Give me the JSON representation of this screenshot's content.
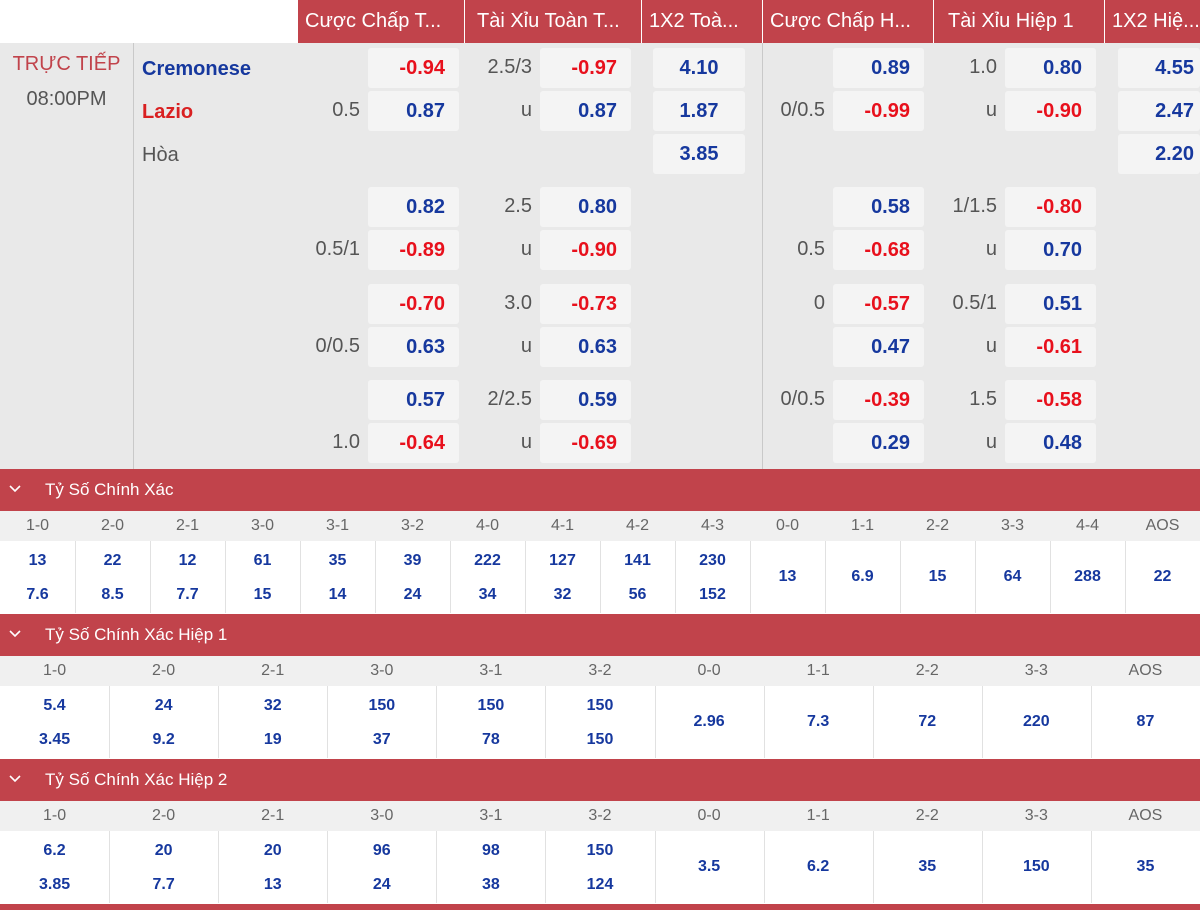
{
  "header": {
    "columns": [
      "Cược Chấp T...",
      "Tài Xỉu Toàn T...",
      "1X2 Toà...",
      "Cược Chấp H...",
      "Tài Xỉu Hiệp 1",
      "1X2 Hiệ..."
    ]
  },
  "match": {
    "status": "TRỰC TIẾP",
    "time": "08:00PM",
    "home": "Cremonese",
    "away": "Lazio",
    "draw": "Hòa"
  },
  "full_1x2": [
    "4.10",
    "1.87",
    "3.85"
  ],
  "half_1x2": [
    "4.55",
    "2.47",
    "2.20"
  ],
  "lines": [
    {
      "ft_hdp": {
        "line": "0.5",
        "home": "-0.94",
        "away": "0.87"
      },
      "ft_ou": {
        "line": "2.5/3",
        "over": "-0.97",
        "under_label": "u",
        "under": "0.87"
      },
      "h1_hdp": {
        "line": "0/0.5",
        "home": "0.89",
        "away": "-0.99"
      },
      "h1_ou": {
        "line": "1.0",
        "over": "0.80",
        "under_label": "u",
        "under": "-0.90"
      }
    },
    {
      "ft_hdp": {
        "line": "0.5/1",
        "home": "0.82",
        "away": "-0.89"
      },
      "ft_ou": {
        "line": "2.5",
        "over": "0.80",
        "under_label": "u",
        "under": "-0.90"
      },
      "h1_hdp": {
        "line": "0.5",
        "home": "0.58",
        "away": "-0.68"
      },
      "h1_ou": {
        "line": "1/1.5",
        "over": "-0.80",
        "under_label": "u",
        "under": "0.70"
      }
    },
    {
      "ft_hdp": {
        "line": "0/0.5",
        "home": "-0.70",
        "away": "0.63"
      },
      "ft_ou": {
        "line": "3.0",
        "over": "-0.73",
        "under_label": "u",
        "under": "0.63"
      },
      "h1_hdp": {
        "line": "0",
        "home": "-0.57",
        "away": "0.47"
      },
      "h1_ou": {
        "line": "0.5/1",
        "over": "0.51",
        "under_label": "u",
        "under": "-0.61"
      }
    },
    {
      "ft_hdp": {
        "line": "1.0",
        "home": "0.57",
        "away": "-0.64"
      },
      "ft_ou": {
        "line": "2/2.5",
        "over": "0.59",
        "under_label": "u",
        "under": "-0.69"
      },
      "h1_hdp": {
        "line": "0/0.5",
        "home": "-0.39",
        "away": "0.29"
      },
      "h1_ou": {
        "line": "1.5",
        "over": "-0.58",
        "under_label": "u",
        "under": "0.48"
      }
    }
  ],
  "correct_score": {
    "title": "Tỷ Số Chính Xác",
    "scores": [
      {
        "label": "1-0",
        "home": "13",
        "away": "7.6"
      },
      {
        "label": "2-0",
        "home": "22",
        "away": "8.5"
      },
      {
        "label": "2-1",
        "home": "12",
        "away": "7.7"
      },
      {
        "label": "3-0",
        "home": "61",
        "away": "15"
      },
      {
        "label": "3-1",
        "home": "35",
        "away": "14"
      },
      {
        "label": "3-2",
        "home": "39",
        "away": "24"
      },
      {
        "label": "4-0",
        "home": "222",
        "away": "34"
      },
      {
        "label": "4-1",
        "home": "127",
        "away": "32"
      },
      {
        "label": "4-2",
        "home": "141",
        "away": "56"
      },
      {
        "label": "4-3",
        "home": "230",
        "away": "152"
      }
    ],
    "draws": [
      {
        "label": "0-0",
        "value": "13"
      },
      {
        "label": "1-1",
        "value": "6.9"
      },
      {
        "label": "2-2",
        "value": "15"
      },
      {
        "label": "3-3",
        "value": "64"
      },
      {
        "label": "4-4",
        "value": "288"
      },
      {
        "label": "AOS",
        "value": "22"
      }
    ]
  },
  "correct_score_h1": {
    "title": "Tỷ Số Chính Xác Hiệp 1",
    "scores": [
      {
        "label": "1-0",
        "home": "5.4",
        "away": "3.45"
      },
      {
        "label": "2-0",
        "home": "24",
        "away": "9.2"
      },
      {
        "label": "2-1",
        "home": "32",
        "away": "19"
      },
      {
        "label": "3-0",
        "home": "150",
        "away": "37"
      },
      {
        "label": "3-1",
        "home": "150",
        "away": "78"
      },
      {
        "label": "3-2",
        "home": "150",
        "away": "150"
      }
    ],
    "draws": [
      {
        "label": "0-0",
        "value": "2.96"
      },
      {
        "label": "1-1",
        "value": "7.3"
      },
      {
        "label": "2-2",
        "value": "72"
      },
      {
        "label": "3-3",
        "value": "220"
      },
      {
        "label": "AOS",
        "value": "87"
      }
    ]
  },
  "correct_score_h2": {
    "title": "Tỷ Số Chính Xác Hiệp 2",
    "scores": [
      {
        "label": "1-0",
        "home": "6.2",
        "away": "3.85"
      },
      {
        "label": "2-0",
        "home": "20",
        "away": "7.7"
      },
      {
        "label": "2-1",
        "home": "20",
        "away": "13"
      },
      {
        "label": "3-0",
        "home": "96",
        "away": "24"
      },
      {
        "label": "3-1",
        "home": "98",
        "away": "38"
      },
      {
        "label": "3-2",
        "home": "150",
        "away": "124"
      }
    ],
    "draws": [
      {
        "label": "0-0",
        "value": "3.5"
      },
      {
        "label": "1-1",
        "value": "6.2"
      },
      {
        "label": "2-2",
        "value": "35"
      },
      {
        "label": "3-3",
        "value": "150"
      },
      {
        "label": "AOS",
        "value": "35"
      }
    ]
  },
  "colors": {
    "brand_red": "#c1434b",
    "odds_negative": "#e8101c",
    "odds_positive": "#16389e"
  }
}
